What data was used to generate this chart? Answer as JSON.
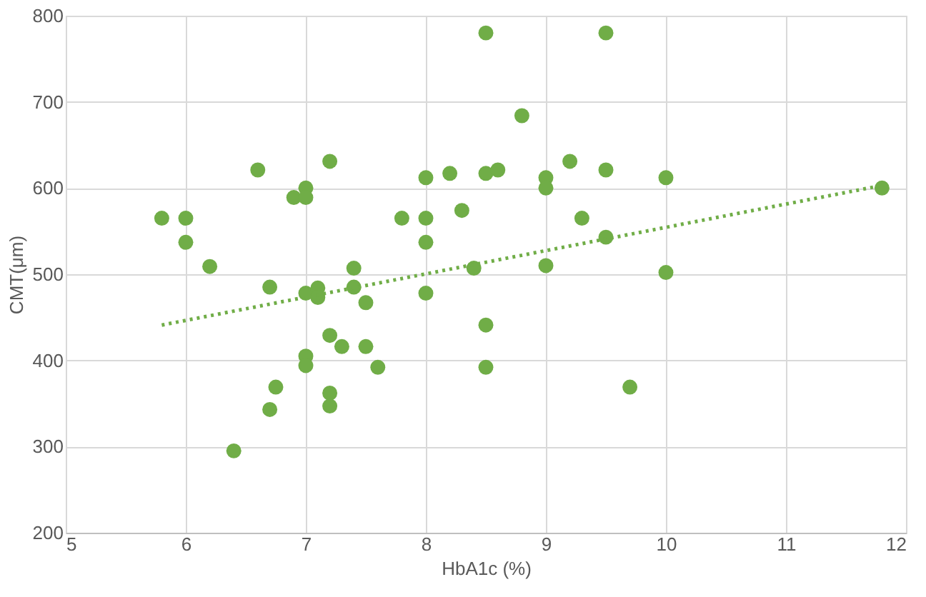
{
  "chart_data": {
    "type": "scatter",
    "xlabel": "HbA1c (%)",
    "ylabel": "CMT(μm)",
    "xlim": [
      5,
      12
    ],
    "ylim": [
      200,
      800
    ],
    "xticks": [
      5,
      6,
      7,
      8,
      9,
      10,
      11,
      12
    ],
    "yticks": [
      200,
      300,
      400,
      500,
      600,
      700,
      800
    ],
    "grid": true,
    "marker": "circle",
    "series": [
      {
        "color": "#70ad47",
        "x": [
          5.8,
          6.0,
          6.0,
          6.2,
          6.4,
          6.6,
          6.7,
          6.7,
          6.75,
          6.9,
          7.0,
          7.0,
          7.0,
          7.0,
          7.0,
          7.1,
          7.1,
          7.2,
          7.2,
          7.2,
          7.2,
          7.3,
          7.4,
          7.4,
          7.5,
          7.5,
          7.6,
          7.8,
          8.0,
          8.0,
          8.0,
          8.0,
          8.2,
          8.3,
          8.4,
          8.5,
          8.5,
          8.6,
          8.5,
          8.5,
          8.8,
          9.0,
          9.0,
          9.0,
          9.2,
          9.3,
          9.5,
          9.5,
          9.5,
          9.7,
          10.0,
          10.0,
          11.8
        ],
        "values": [
          565,
          565,
          537,
          509,
          295,
          621,
          485,
          343,
          369,
          589,
          600,
          589,
          478,
          405,
          394,
          484,
          473,
          631,
          429,
          362,
          347,
          416,
          507,
          485,
          467,
          416,
          392,
          565,
          612,
          565,
          537,
          478,
          617,
          574,
          507,
          780,
          617,
          621,
          441,
          392,
          684,
          612,
          600,
          510,
          631,
          565,
          780,
          621,
          543,
          369,
          612,
          502,
          600
        ]
      },
      {
        "type": "line",
        "color": "#70ad47",
        "line_style": "dotted",
        "marker": "none",
        "x": [
          5.8,
          11.8
        ],
        "values": [
          441,
          603
        ]
      }
    ]
  }
}
